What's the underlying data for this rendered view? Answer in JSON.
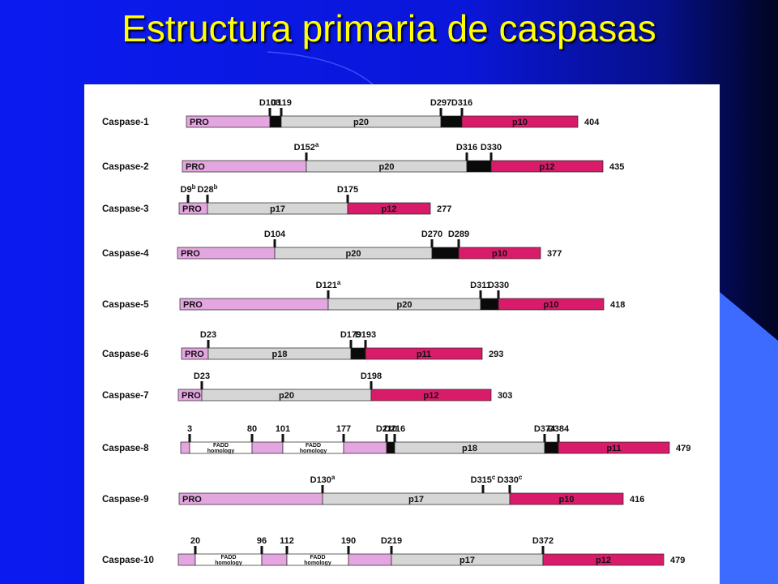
{
  "title": "Estructura primaria de caspasas",
  "caspases": [
    {
      "name": "Caspase-1",
      "length": "404",
      "segments": [
        {
          "type": "pro",
          "label": "PRO"
        },
        {
          "type": "link"
        },
        {
          "type": "p20",
          "label": "p20"
        },
        {
          "type": "link"
        },
        {
          "type": "small",
          "label": "p10"
        }
      ],
      "sites": [
        {
          "label": "D103"
        },
        {
          "label": "D119"
        },
        {
          "label": "D297"
        },
        {
          "label": "D316"
        }
      ]
    },
    {
      "name": "Caspase-2",
      "length": "435",
      "segments": [
        {
          "type": "pro",
          "label": "PRO"
        },
        {
          "type": "p20",
          "label": "p20"
        },
        {
          "type": "link"
        },
        {
          "type": "small",
          "label": "p12"
        }
      ],
      "sites": [
        {
          "label": "D152",
          "sup": "a"
        },
        {
          "label": "D316"
        },
        {
          "label": "D330"
        }
      ]
    },
    {
      "name": "Caspase-3",
      "length": "277",
      "segments": [
        {
          "type": "pro",
          "label": "PRO"
        },
        {
          "type": "p20",
          "label": "p17"
        },
        {
          "type": "small",
          "label": "p12"
        }
      ],
      "sites": [
        {
          "label": "D9",
          "sup": "b"
        },
        {
          "label": "D28",
          "sup": "b"
        },
        {
          "label": "D175"
        }
      ]
    },
    {
      "name": "Caspase-4",
      "length": "377",
      "segments": [
        {
          "type": "pro",
          "label": "PRO"
        },
        {
          "type": "p20",
          "label": "p20"
        },
        {
          "type": "link"
        },
        {
          "type": "small",
          "label": "p10"
        }
      ],
      "sites": [
        {
          "label": "D104"
        },
        {
          "label": "D270"
        },
        {
          "label": "D289"
        }
      ]
    },
    {
      "name": "Caspase-5",
      "length": "418",
      "segments": [
        {
          "type": "pro",
          "label": "PRO"
        },
        {
          "type": "p20",
          "label": "p20"
        },
        {
          "type": "link"
        },
        {
          "type": "small",
          "label": "p10"
        }
      ],
      "sites": [
        {
          "label": "D121",
          "sup": "a"
        },
        {
          "label": "D311"
        },
        {
          "label": "D330"
        }
      ]
    },
    {
      "name": "Caspase-6",
      "length": "293",
      "segments": [
        {
          "type": "pro",
          "label": "PRO"
        },
        {
          "type": "p20",
          "label": "p18"
        },
        {
          "type": "link"
        },
        {
          "type": "small",
          "label": "p11"
        }
      ],
      "sites": [
        {
          "label": "D23"
        },
        {
          "label": "D179"
        },
        {
          "label": "D193"
        }
      ]
    },
    {
      "name": "Caspase-7",
      "length": "303",
      "segments": [
        {
          "type": "pro",
          "label": "PRO"
        },
        {
          "type": "p20",
          "label": "p20"
        },
        {
          "type": "small",
          "label": "p12"
        }
      ],
      "sites": [
        {
          "label": "D23"
        },
        {
          "label": "D198"
        }
      ]
    },
    {
      "name": "Caspase-8",
      "length": "479",
      "segments": [
        {
          "type": "pro"
        },
        {
          "type": "fadd",
          "label": "FADD homology"
        },
        {
          "type": "pro"
        },
        {
          "type": "fadd",
          "label": "FADD homology"
        },
        {
          "type": "pro"
        },
        {
          "type": "link"
        },
        {
          "type": "p20",
          "label": "p18"
        },
        {
          "type": "link"
        },
        {
          "type": "small",
          "label": "p11"
        }
      ],
      "sites": [
        {
          "label": "3"
        },
        {
          "label": "80"
        },
        {
          "label": "101"
        },
        {
          "label": "177"
        },
        {
          "label": "D210"
        },
        {
          "label": "D216"
        },
        {
          "label": "D374"
        },
        {
          "label": "D384"
        }
      ]
    },
    {
      "name": "Caspase-9",
      "length": "416",
      "segments": [
        {
          "type": "pro",
          "label": "PRO"
        },
        {
          "type": "p20",
          "label": "p17"
        },
        {
          "type": "small",
          "label": "p10"
        }
      ],
      "sites": [
        {
          "label": "D130",
          "sup": "a"
        },
        {
          "label": "D315",
          "sup": "c"
        },
        {
          "label": "D330",
          "sup": "c"
        }
      ]
    },
    {
      "name": "Caspase-10",
      "length": "479",
      "segments": [
        {
          "type": "pro"
        },
        {
          "type": "fadd",
          "label": "FADD homology"
        },
        {
          "type": "pro"
        },
        {
          "type": "fadd",
          "label": "FADD homology"
        },
        {
          "type": "pro"
        },
        {
          "type": "p20",
          "label": "p17"
        },
        {
          "type": "small",
          "label": "p12"
        }
      ],
      "sites": [
        {
          "label": "20"
        },
        {
          "label": "96"
        },
        {
          "label": "112"
        },
        {
          "label": "190"
        },
        {
          "label": "D219"
        },
        {
          "label": "D372"
        }
      ]
    }
  ],
  "colors": {
    "background_blue": "#0b1bf0",
    "title": "#ffff00",
    "pro": "#e4a6e0",
    "large_subunit": "#d6d6d6",
    "small_subunit": "#d81c6a",
    "linker": "#0a0a0a",
    "fadd": "#ffffff"
  }
}
